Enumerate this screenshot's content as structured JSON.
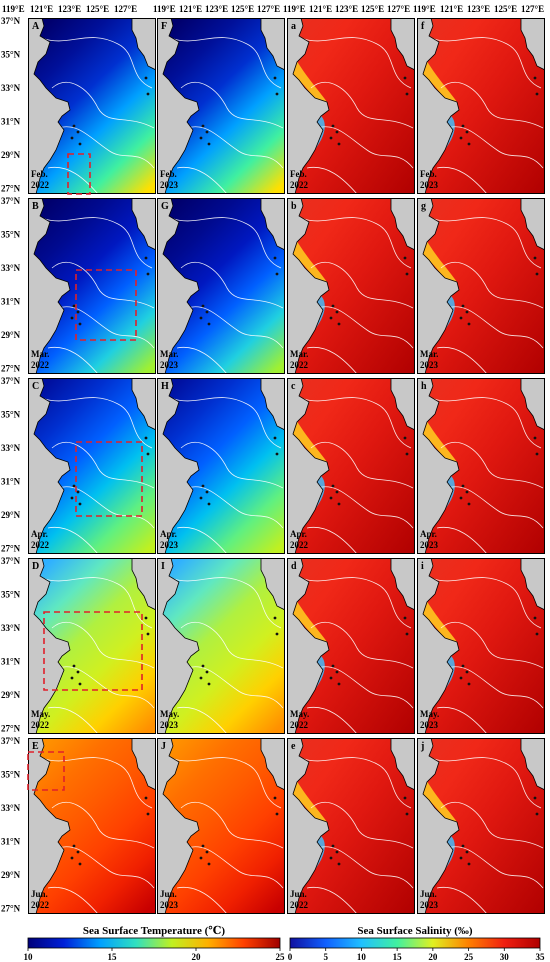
{
  "lon_ticks": [
    "119°E",
    "121°E",
    "123°E",
    "125°E",
    "127°E"
  ],
  "lat_ticks": [
    "37°N",
    "35°N",
    "33°N",
    "31°N",
    "29°N",
    "27°N"
  ],
  "panels": [
    {
      "letter": "A",
      "month": "Feb.",
      "year": "2022",
      "var": "sst",
      "level": 0.05
    },
    {
      "letter": "F",
      "month": "Feb.",
      "year": "2023",
      "var": "sst",
      "level": 0.05
    },
    {
      "letter": "a",
      "month": "Feb.",
      "year": "2022",
      "var": "sss",
      "level": 0
    },
    {
      "letter": "f",
      "month": "Feb.",
      "year": "2023",
      "var": "sss",
      "level": 0
    },
    {
      "letter": "B",
      "month": "Mar.",
      "year": "2022",
      "var": "sst",
      "level": 0.0
    },
    {
      "letter": "G",
      "month": "Mar.",
      "year": "2023",
      "var": "sst",
      "level": 0.0
    },
    {
      "letter": "b",
      "month": "Mar.",
      "year": "2022",
      "var": "sss",
      "level": 0
    },
    {
      "letter": "g",
      "month": "Mar.",
      "year": "2023",
      "var": "sss",
      "level": 0
    },
    {
      "letter": "C",
      "month": "Apr.",
      "year": "2022",
      "var": "sst",
      "level": 0.12
    },
    {
      "letter": "H",
      "month": "Apr.",
      "year": "2023",
      "var": "sst",
      "level": 0.12
    },
    {
      "letter": "c",
      "month": "Apr.",
      "year": "2022",
      "var": "sss",
      "level": 0
    },
    {
      "letter": "h",
      "month": "Apr.",
      "year": "2023",
      "var": "sss",
      "level": 0
    },
    {
      "letter": "D",
      "month": "May.",
      "year": "2022",
      "var": "sst",
      "level": 0.35
    },
    {
      "letter": "I",
      "month": "May.",
      "year": "2023",
      "var": "sst",
      "level": 0.35
    },
    {
      "letter": "d",
      "month": "May.",
      "year": "2022",
      "var": "sss",
      "level": 0
    },
    {
      "letter": "i",
      "month": "May.",
      "year": "2023",
      "var": "sss",
      "level": 0
    },
    {
      "letter": "E",
      "month": "Jun.",
      "year": "2022",
      "var": "sst",
      "level": 0.7
    },
    {
      "letter": "J",
      "month": "Jun.",
      "year": "2023",
      "var": "sst",
      "level": 0.7
    },
    {
      "letter": "e",
      "month": "Jun.",
      "year": "2022",
      "var": "sss",
      "level": 0
    },
    {
      "letter": "j",
      "month": "Jun.",
      "year": "2023",
      "var": "sss",
      "level": 0
    }
  ],
  "colorbars": [
    {
      "title": "Sea Surface Temperature (℃)",
      "ticks": [
        "10",
        "15",
        "20",
        "25"
      ]
    },
    {
      "title": "Sea Surface Salinity (‰)",
      "ticks": [
        "0",
        "5",
        "10",
        "15",
        "20",
        "25",
        "30",
        "35"
      ]
    }
  ],
  "colors": {
    "land": "#c8c8c8",
    "coast": "#000000",
    "highlight_box": "#e0202a",
    "sst_ramp": [
      "#00007a",
      "#0020d8",
      "#00a0ff",
      "#30e0c0",
      "#c0f020",
      "#ffb000",
      "#ff4000",
      "#a00000"
    ],
    "sss_ramp": [
      "#1010a0",
      "#1060ff",
      "#20c0ff",
      "#40f0a0",
      "#e0f020",
      "#ff8000",
      "#f02010",
      "#b00000"
    ]
  }
}
